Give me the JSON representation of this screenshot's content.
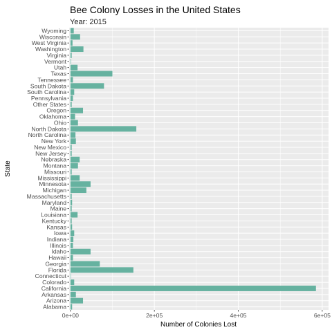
{
  "chart_data": {
    "type": "bar",
    "orientation": "horizontal",
    "title": "Bee Colony Losses in the United States",
    "subtitle": "Year: 2015",
    "xlabel": "Number of Colonies Lost",
    "ylabel": "State",
    "xlim": [
      -3000,
      615000
    ],
    "x_ticks": [
      0,
      200000,
      400000,
      600000
    ],
    "x_tick_labels": [
      "0e+00",
      "2e+05",
      "4e+05",
      "6e+05"
    ],
    "bar_color": "#66b2a0",
    "panel_color": "#ebebeb",
    "grid": true,
    "categories": [
      "Alabama",
      "Arizona",
      "Arkansas",
      "California",
      "Colorado",
      "Connecticut",
      "Florida",
      "Georgia",
      "Hawaii",
      "Idaho",
      "Illinois",
      "Indiana",
      "Iowa",
      "Kansas",
      "Kentucky",
      "Louisiana",
      "Maine",
      "Maryland",
      "Massachusetts",
      "Michigan",
      "Minnesota",
      "Mississippi",
      "Missouri",
      "Montana",
      "Nebraska",
      "New Jersey",
      "New Mexico",
      "New York",
      "North Carolina",
      "North Dakota",
      "Ohio",
      "Oklahoma",
      "Oregon",
      "Other States",
      "Pennsylvania",
      "South Carolina",
      "South Dakota",
      "Tennessee",
      "Texas",
      "Utah",
      "Vermont",
      "Virginia",
      "Washington",
      "West Virginia",
      "Wisconsin",
      "Wyoming"
    ],
    "values": [
      4000,
      30000,
      13000,
      585000,
      9000,
      600,
      150000,
      70000,
      6000,
      48000,
      6000,
      7000,
      9000,
      4000,
      3000,
      17000,
      3000,
      4000,
      3000,
      38000,
      48000,
      22000,
      3000,
      18000,
      22000,
      3000,
      3000,
      13000,
      12000,
      157000,
      18000,
      11000,
      30000,
      3000,
      6000,
      9000,
      80000,
      6000,
      100000,
      17000,
      1200,
      3000,
      31000,
      5000,
      23000,
      8000
    ]
  }
}
